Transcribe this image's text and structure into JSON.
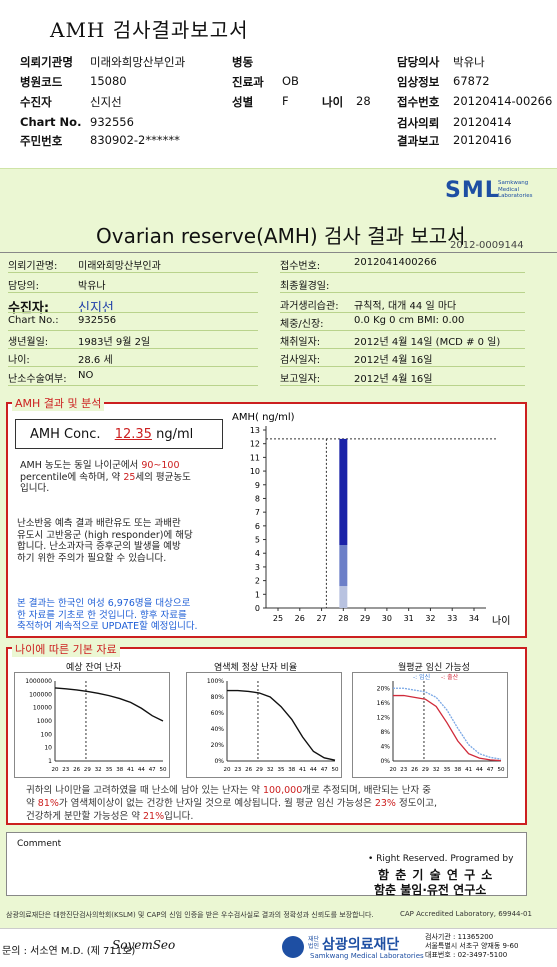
{
  "top_title": "AMH 검사결과보고서",
  "header": {
    "left": [
      {
        "label": "의뢰기관명",
        "value": "미래와희망산부인과"
      },
      {
        "label": "병원코드",
        "value": "15080"
      },
      {
        "label": "수진자",
        "value": "신지선"
      },
      {
        "label": "Chart No.",
        "value": "932556"
      },
      {
        "label": "주민번호",
        "value": "830902-2******"
      }
    ],
    "mid": [
      {
        "label": "병동",
        "value": ""
      },
      {
        "label": "진료과",
        "value": "OB"
      },
      {
        "label": "성별",
        "value": "F"
      }
    ],
    "age_label": "나이",
    "age_value": "28",
    "right": [
      {
        "label": "담당의사",
        "value": "박유나"
      },
      {
        "label": "임상정보",
        "value": "67872"
      },
      {
        "label": "접수번호",
        "value": "20120414-00266"
      },
      {
        "label": "검사의뢰",
        "value": "20120414"
      },
      {
        "label": "결과보고",
        "value": "20120416"
      }
    ]
  },
  "sml": {
    "logo": "SML",
    "sub1": "Samkwang",
    "sub2": "Medical",
    "sub3": "Laboratories"
  },
  "report_title": "Ovarian reserve(AMH) 검사 결과 보고서",
  "doc_no": "2012-0009144",
  "info_left": [
    {
      "label": "의뢰기관명:",
      "value": "미래와희망산부인과"
    },
    {
      "label": "담당의:",
      "value": "박유나"
    },
    {
      "label": "수진자:",
      "value": "신지선"
    },
    {
      "label": "Chart No.:",
      "value": "932556"
    },
    {
      "label": "생년월일:",
      "value": "1983년 9월 2일"
    },
    {
      "label": "나이:",
      "value": "28.6 세"
    },
    {
      "label": "난소수술여부:",
      "value": "NO"
    }
  ],
  "info_right": [
    {
      "label": "접수번호:",
      "value": "2012041400266"
    },
    {
      "label": "최종월경일:",
      "value": ""
    },
    {
      "label": "과거생리습관:",
      "value": "규칙적, 대개   44 일 마다"
    },
    {
      "label": "체중/신장:",
      "value": "0.0 Kg        0 cm   BMI:   0.00"
    },
    {
      "label": "채취일자:",
      "value": "2012년 4월 14일   (MCD # 0 일)"
    },
    {
      "label": "검사일자:",
      "value": "2012년 4월 16일"
    },
    {
      "label": "보고일자:",
      "value": "2012년 4월 16일"
    }
  ],
  "amh_section": {
    "tag": "AMH 결과 및 분석",
    "conc_label": "AMH Conc.",
    "conc_value": "12.35",
    "conc_unit": "ng/ml",
    "para1_a": "AMH 농도는 동일 나이군에서",
    "para1_b": "90~100",
    "para1_c": "percentile에 속하며, 약",
    "para1_d": "25",
    "para1_e": "세의 평균농도",
    "para1_f": "입니다.",
    "para2_1": "난소반응 예측 결과 배란유도 또는 과배란",
    "para2_2": "유도시 고반응군 (high responder)에 해당",
    "para2_3": "합니다. 난소과자극 증후군의 발생을 예방",
    "para2_4": "하기 위한 주의가 필요할 수 있습니다.",
    "para3_1": "본 결과는 한국인 여성 6,976명을 대상으로",
    "para3_2": "한 자료를 기초로 한 것입니다. 향후 자료를",
    "para3_3": "축적하여 계속적으로 UPDATE할 예정입니다."
  },
  "chart_data": [
    {
      "type": "bar",
      "title": "",
      "ylabel": "AMH( ng/ml)",
      "xlabel": "나이",
      "x_ticks": [
        25,
        26,
        27,
        28,
        29,
        30,
        31,
        32,
        33,
        34
      ],
      "ylim": [
        0,
        13
      ],
      "y_ticks": [
        0,
        1,
        2,
        3,
        4,
        5,
        6,
        7,
        8,
        9,
        10,
        11,
        12,
        13
      ],
      "reference_line": 12.35,
      "patient_age": 28.6,
      "bar_x": 28,
      "segments": [
        {
          "from": 0,
          "to": 1.6,
          "color": "#b8c2e0"
        },
        {
          "from": 1.6,
          "to": 4.6,
          "color": "#6c7fc8"
        },
        {
          "from": 4.6,
          "to": 12.35,
          "color": "#1a22a8"
        }
      ]
    },
    {
      "type": "line",
      "title": "예상 잔여 난자",
      "x": [
        20,
        23,
        26,
        29,
        32,
        35,
        38,
        41,
        44,
        47,
        50
      ],
      "y": [
        300000,
        260000,
        215000,
        165000,
        120000,
        80000,
        48000,
        25000,
        9000,
        2500,
        1000
      ],
      "ylim": [
        1,
        1000000
      ],
      "yscale": "log",
      "y_ticks": [
        "1000000",
        "100000",
        "10000",
        "1000",
        "100",
        "10",
        "1"
      ],
      "x_ticks": [
        "20",
        "23",
        "26",
        "29",
        "32",
        "35",
        "38",
        "41",
        "44",
        "47",
        "50"
      ]
    },
    {
      "type": "line",
      "title": "염색체 정상 난자 비율",
      "x": [
        20,
        23,
        26,
        29,
        32,
        35,
        38,
        41,
        44,
        47,
        50
      ],
      "y": [
        88,
        88,
        87,
        85,
        80,
        68,
        52,
        30,
        12,
        4,
        1
      ],
      "ylim": [
        0,
        100
      ],
      "y_ticks": [
        "100%",
        "80%",
        "60%",
        "40%",
        "20%",
        "0%"
      ],
      "x_ticks": [
        "20",
        "23",
        "26",
        "29",
        "32",
        "35",
        "38",
        "41",
        "44",
        "47",
        "50"
      ]
    },
    {
      "type": "line",
      "title": "월평균 임신 가능성",
      "legend": [
        "-: 임신",
        "-: 출산"
      ],
      "x": [
        20,
        23,
        26,
        29,
        32,
        35,
        38,
        41,
        44,
        47,
        50
      ],
      "series": [
        {
          "name": "-: 임신",
          "values": [
            20,
            20,
            19.5,
            19,
            17.5,
            14,
            9,
            4.5,
            2,
            1,
            0.5
          ],
          "color": "#7aa8e6"
        },
        {
          "name": "-: 출산",
          "values": [
            18,
            18,
            17.5,
            17,
            15,
            10.5,
            5.5,
            2,
            0.8,
            0.3,
            0.1
          ],
          "color": "#d02a3a"
        }
      ],
      "ylim": [
        0,
        22
      ],
      "y_ticks": [
        "20%",
        "16%",
        "12%",
        "8%",
        "4%",
        "0%"
      ],
      "x_ticks": [
        "20",
        "23",
        "26",
        "29",
        "32",
        "35",
        "38",
        "41",
        "44",
        "47",
        "50"
      ]
    }
  ],
  "pop_section": {
    "tag": "나이에 따른 기본 자료",
    "b1_a": "귀하의 나이만을 고려하였을 때 난소에 남아 있는 난자는 약",
    "b1_b": "100,000",
    "b1_c": "개로 추정되며, 배란되는 난자 중",
    "b2_a": "약",
    "b2_b": "81%",
    "b2_c": "가 염색체이상이 없는 건강한 난자일 것으로 예상됩니다. 월 평균 임신 가능성은",
    "b2_d": "23%",
    "b2_e": "정도이고,",
    "b3_a": "건강하게 분만할 가능성은 약",
    "b3_b": "21%",
    "b3_c": "입니다."
  },
  "comment_label": "Comment",
  "rights": {
    "line1": "• Right Reserved. Programed by",
    "line2": "함 춘 기 술 연 구 소",
    "line3": "함춘 불임·유전 연구소"
  },
  "footer": {
    "note": "삼광의료재단은 대한진단검사의학회(KSLM) 및 CAP의 신임 인증을 받은 우수검사실로 결과의 정확성과 신뢰도를 보장합니다.",
    "cap": "CAP Accredited Laboratory, 69944-01",
    "doctor": "문의 : 서소연 M.D. (제 711호)",
    "signature": "SoyemSeo",
    "org_badge": "재단법인",
    "org_name": "삼광의료재단",
    "org_en": "Samkwang Medical Laboratories",
    "tel1": "검사기관 : 11365200",
    "tel2": "서울특별시 서초구 양재동 9-60",
    "tel3": "대표번호 : 02-3497-5100"
  }
}
